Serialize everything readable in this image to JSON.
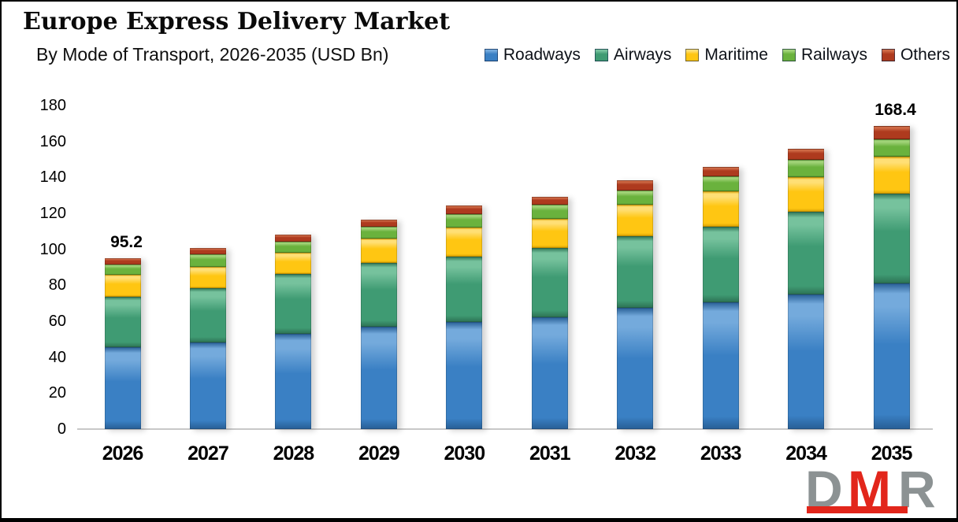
{
  "header": {
    "title": "Europe Express Delivery Market",
    "subtitle": "By Mode of Transport, 2026-2035 (USD Bn)"
  },
  "chart_data": {
    "type": "bar",
    "stacked": true,
    "title": "Europe Express Delivery Market",
    "subtitle": "By Mode of Transport, 2026-2035 (USD Bn)",
    "unit": "USD Bn",
    "categories": [
      "2026",
      "2027",
      "2028",
      "2029",
      "2030",
      "2031",
      "2032",
      "2033",
      "2034",
      "2035"
    ],
    "series": [
      {
        "name": "Roadways",
        "color": "#3A80C4",
        "color_light": "#74AADC",
        "color_dark": "#275E95",
        "values": [
          45.4,
          48.1,
          52.9,
          56.8,
          59.4,
          62.0,
          67.3,
          70.3,
          74.7,
          80.8
        ]
      },
      {
        "name": "Airways",
        "color": "#3F9B73",
        "color_light": "#76C29D",
        "color_dark": "#2C7153",
        "values": [
          28.0,
          30.1,
          33.2,
          35.4,
          36.7,
          38.9,
          40.2,
          42.4,
          46.3,
          50.3
        ]
      },
      {
        "name": "Maritime",
        "color": "#FFC612",
        "color_light": "#FFDF75",
        "color_dark": "#D79F00",
        "values": [
          12.3,
          12.2,
          12.2,
          13.6,
          16.2,
          16.2,
          17.4,
          19.7,
          19.2,
          20.5
        ]
      },
      {
        "name": "Railways",
        "color": "#6AB23D",
        "color_light": "#A0D277",
        "color_dark": "#4C8628",
        "values": [
          5.8,
          7.0,
          6.1,
          6.9,
          7.4,
          7.8,
          7.9,
          8.3,
          9.6,
          9.6
        ]
      },
      {
        "name": "Others",
        "color": "#AE3A1E",
        "color_light": "#CE6A46",
        "color_dark": "#71220E",
        "values": [
          3.7,
          3.5,
          3.9,
          3.9,
          4.8,
          4.4,
          5.7,
          5.2,
          6.2,
          7.2
        ]
      }
    ],
    "totals_shown": [
      {
        "category": "2026",
        "text": "95.2"
      },
      {
        "category": "2035",
        "text": "168.4"
      }
    ],
    "ylim": [
      0,
      180
    ],
    "yticks": [
      0,
      20,
      40,
      60,
      80,
      100,
      120,
      140,
      160,
      180
    ],
    "grid": false,
    "legend_position": "top-right"
  },
  "logo": {
    "text": "DMR",
    "letters": [
      {
        "char": "D",
        "color": "#8C9293"
      },
      {
        "char": "M",
        "color": "#E2261B"
      },
      {
        "char": "R",
        "color": "#8C9293"
      }
    ],
    "underline_color": "#E2261B"
  }
}
